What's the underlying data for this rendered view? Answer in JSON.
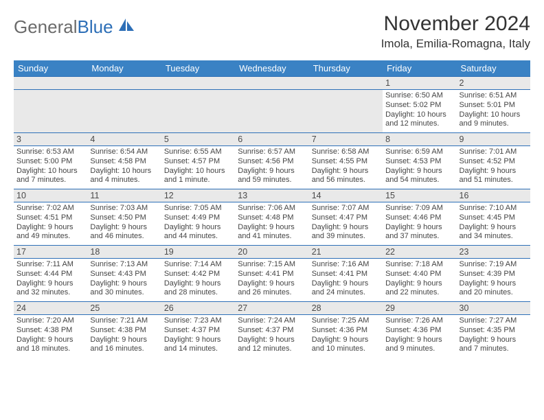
{
  "logo": {
    "text1": "General",
    "text2": "Blue"
  },
  "title": "November 2024",
  "location": "Imola, Emilia-Romagna, Italy",
  "colors": {
    "header_bg": "#3a82c4",
    "header_text": "#ffffff",
    "daynum_bg": "#e9e9e9",
    "rule": "#2d6fb7",
    "logo_gray": "#6b6b6b",
    "logo_blue": "#2d6fb7"
  },
  "dayHeaders": [
    "Sunday",
    "Monday",
    "Tuesday",
    "Wednesday",
    "Thursday",
    "Friday",
    "Saturday"
  ],
  "weeks": [
    [
      null,
      null,
      null,
      null,
      null,
      {
        "n": "1",
        "sr": "Sunrise: 6:50 AM",
        "ss": "Sunset: 5:02 PM",
        "d1": "Daylight: 10 hours",
        "d2": "and 12 minutes."
      },
      {
        "n": "2",
        "sr": "Sunrise: 6:51 AM",
        "ss": "Sunset: 5:01 PM",
        "d1": "Daylight: 10 hours",
        "d2": "and 9 minutes."
      }
    ],
    [
      {
        "n": "3",
        "sr": "Sunrise: 6:53 AM",
        "ss": "Sunset: 5:00 PM",
        "d1": "Daylight: 10 hours",
        "d2": "and 7 minutes."
      },
      {
        "n": "4",
        "sr": "Sunrise: 6:54 AM",
        "ss": "Sunset: 4:58 PM",
        "d1": "Daylight: 10 hours",
        "d2": "and 4 minutes."
      },
      {
        "n": "5",
        "sr": "Sunrise: 6:55 AM",
        "ss": "Sunset: 4:57 PM",
        "d1": "Daylight: 10 hours",
        "d2": "and 1 minute."
      },
      {
        "n": "6",
        "sr": "Sunrise: 6:57 AM",
        "ss": "Sunset: 4:56 PM",
        "d1": "Daylight: 9 hours",
        "d2": "and 59 minutes."
      },
      {
        "n": "7",
        "sr": "Sunrise: 6:58 AM",
        "ss": "Sunset: 4:55 PM",
        "d1": "Daylight: 9 hours",
        "d2": "and 56 minutes."
      },
      {
        "n": "8",
        "sr": "Sunrise: 6:59 AM",
        "ss": "Sunset: 4:53 PM",
        "d1": "Daylight: 9 hours",
        "d2": "and 54 minutes."
      },
      {
        "n": "9",
        "sr": "Sunrise: 7:01 AM",
        "ss": "Sunset: 4:52 PM",
        "d1": "Daylight: 9 hours",
        "d2": "and 51 minutes."
      }
    ],
    [
      {
        "n": "10",
        "sr": "Sunrise: 7:02 AM",
        "ss": "Sunset: 4:51 PM",
        "d1": "Daylight: 9 hours",
        "d2": "and 49 minutes."
      },
      {
        "n": "11",
        "sr": "Sunrise: 7:03 AM",
        "ss": "Sunset: 4:50 PM",
        "d1": "Daylight: 9 hours",
        "d2": "and 46 minutes."
      },
      {
        "n": "12",
        "sr": "Sunrise: 7:05 AM",
        "ss": "Sunset: 4:49 PM",
        "d1": "Daylight: 9 hours",
        "d2": "and 44 minutes."
      },
      {
        "n": "13",
        "sr": "Sunrise: 7:06 AM",
        "ss": "Sunset: 4:48 PM",
        "d1": "Daylight: 9 hours",
        "d2": "and 41 minutes."
      },
      {
        "n": "14",
        "sr": "Sunrise: 7:07 AM",
        "ss": "Sunset: 4:47 PM",
        "d1": "Daylight: 9 hours",
        "d2": "and 39 minutes."
      },
      {
        "n": "15",
        "sr": "Sunrise: 7:09 AM",
        "ss": "Sunset: 4:46 PM",
        "d1": "Daylight: 9 hours",
        "d2": "and 37 minutes."
      },
      {
        "n": "16",
        "sr": "Sunrise: 7:10 AM",
        "ss": "Sunset: 4:45 PM",
        "d1": "Daylight: 9 hours",
        "d2": "and 34 minutes."
      }
    ],
    [
      {
        "n": "17",
        "sr": "Sunrise: 7:11 AM",
        "ss": "Sunset: 4:44 PM",
        "d1": "Daylight: 9 hours",
        "d2": "and 32 minutes."
      },
      {
        "n": "18",
        "sr": "Sunrise: 7:13 AM",
        "ss": "Sunset: 4:43 PM",
        "d1": "Daylight: 9 hours",
        "d2": "and 30 minutes."
      },
      {
        "n": "19",
        "sr": "Sunrise: 7:14 AM",
        "ss": "Sunset: 4:42 PM",
        "d1": "Daylight: 9 hours",
        "d2": "and 28 minutes."
      },
      {
        "n": "20",
        "sr": "Sunrise: 7:15 AM",
        "ss": "Sunset: 4:41 PM",
        "d1": "Daylight: 9 hours",
        "d2": "and 26 minutes."
      },
      {
        "n": "21",
        "sr": "Sunrise: 7:16 AM",
        "ss": "Sunset: 4:41 PM",
        "d1": "Daylight: 9 hours",
        "d2": "and 24 minutes."
      },
      {
        "n": "22",
        "sr": "Sunrise: 7:18 AM",
        "ss": "Sunset: 4:40 PM",
        "d1": "Daylight: 9 hours",
        "d2": "and 22 minutes."
      },
      {
        "n": "23",
        "sr": "Sunrise: 7:19 AM",
        "ss": "Sunset: 4:39 PM",
        "d1": "Daylight: 9 hours",
        "d2": "and 20 minutes."
      }
    ],
    [
      {
        "n": "24",
        "sr": "Sunrise: 7:20 AM",
        "ss": "Sunset: 4:38 PM",
        "d1": "Daylight: 9 hours",
        "d2": "and 18 minutes."
      },
      {
        "n": "25",
        "sr": "Sunrise: 7:21 AM",
        "ss": "Sunset: 4:38 PM",
        "d1": "Daylight: 9 hours",
        "d2": "and 16 minutes."
      },
      {
        "n": "26",
        "sr": "Sunrise: 7:23 AM",
        "ss": "Sunset: 4:37 PM",
        "d1": "Daylight: 9 hours",
        "d2": "and 14 minutes."
      },
      {
        "n": "27",
        "sr": "Sunrise: 7:24 AM",
        "ss": "Sunset: 4:37 PM",
        "d1": "Daylight: 9 hours",
        "d2": "and 12 minutes."
      },
      {
        "n": "28",
        "sr": "Sunrise: 7:25 AM",
        "ss": "Sunset: 4:36 PM",
        "d1": "Daylight: 9 hours",
        "d2": "and 10 minutes."
      },
      {
        "n": "29",
        "sr": "Sunrise: 7:26 AM",
        "ss": "Sunset: 4:36 PM",
        "d1": "Daylight: 9 hours",
        "d2": "and 9 minutes."
      },
      {
        "n": "30",
        "sr": "Sunrise: 7:27 AM",
        "ss": "Sunset: 4:35 PM",
        "d1": "Daylight: 9 hours",
        "d2": "and 7 minutes."
      }
    ]
  ]
}
